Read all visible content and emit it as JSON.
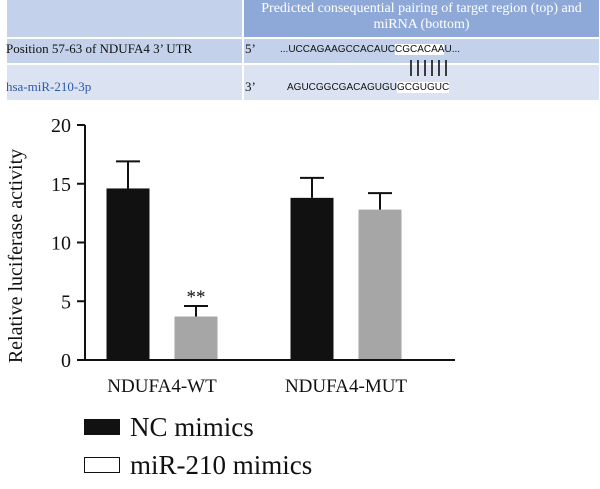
{
  "pairing": {
    "header": "Predicted consequential pairing of target region (top) and miRNA (bottom)",
    "target_label": "Position 57-63 of NDUFA4 3’ UTR",
    "mirna_label": "hsa-miR-210-3p",
    "prime5": "5’",
    "prime3": "3’",
    "target_seq_pre": "...UCCAGAAGCCACAUC",
    "target_seq_site": "CGCACAA",
    "target_seq_post": "U...",
    "mirna_seq_pre": "AGUCGGCGACAGUGU",
    "mirna_seq_site": "GCGUGUC"
  },
  "colors": {
    "nc_mimics": "#111111",
    "mir210_mimics": "#a6a6a6"
  },
  "chart_data": {
    "type": "bar",
    "categories": [
      "NDUFA4-WT",
      "NDUFA4-MUT"
    ],
    "series": [
      {
        "name": "NC mimics",
        "values": [
          14.6,
          13.8
        ],
        "errors": [
          2.3,
          1.7
        ]
      },
      {
        "name": "miR-210 mimics",
        "values": [
          3.7,
          12.8
        ],
        "errors": [
          0.9,
          1.4
        ]
      }
    ],
    "significance": [
      {
        "category": 0,
        "series": 1,
        "label": "**"
      }
    ],
    "ylabel": "Relative luciferase activity",
    "ylim": [
      0,
      20
    ],
    "yticks": [
      0,
      5,
      10,
      15,
      20
    ]
  }
}
